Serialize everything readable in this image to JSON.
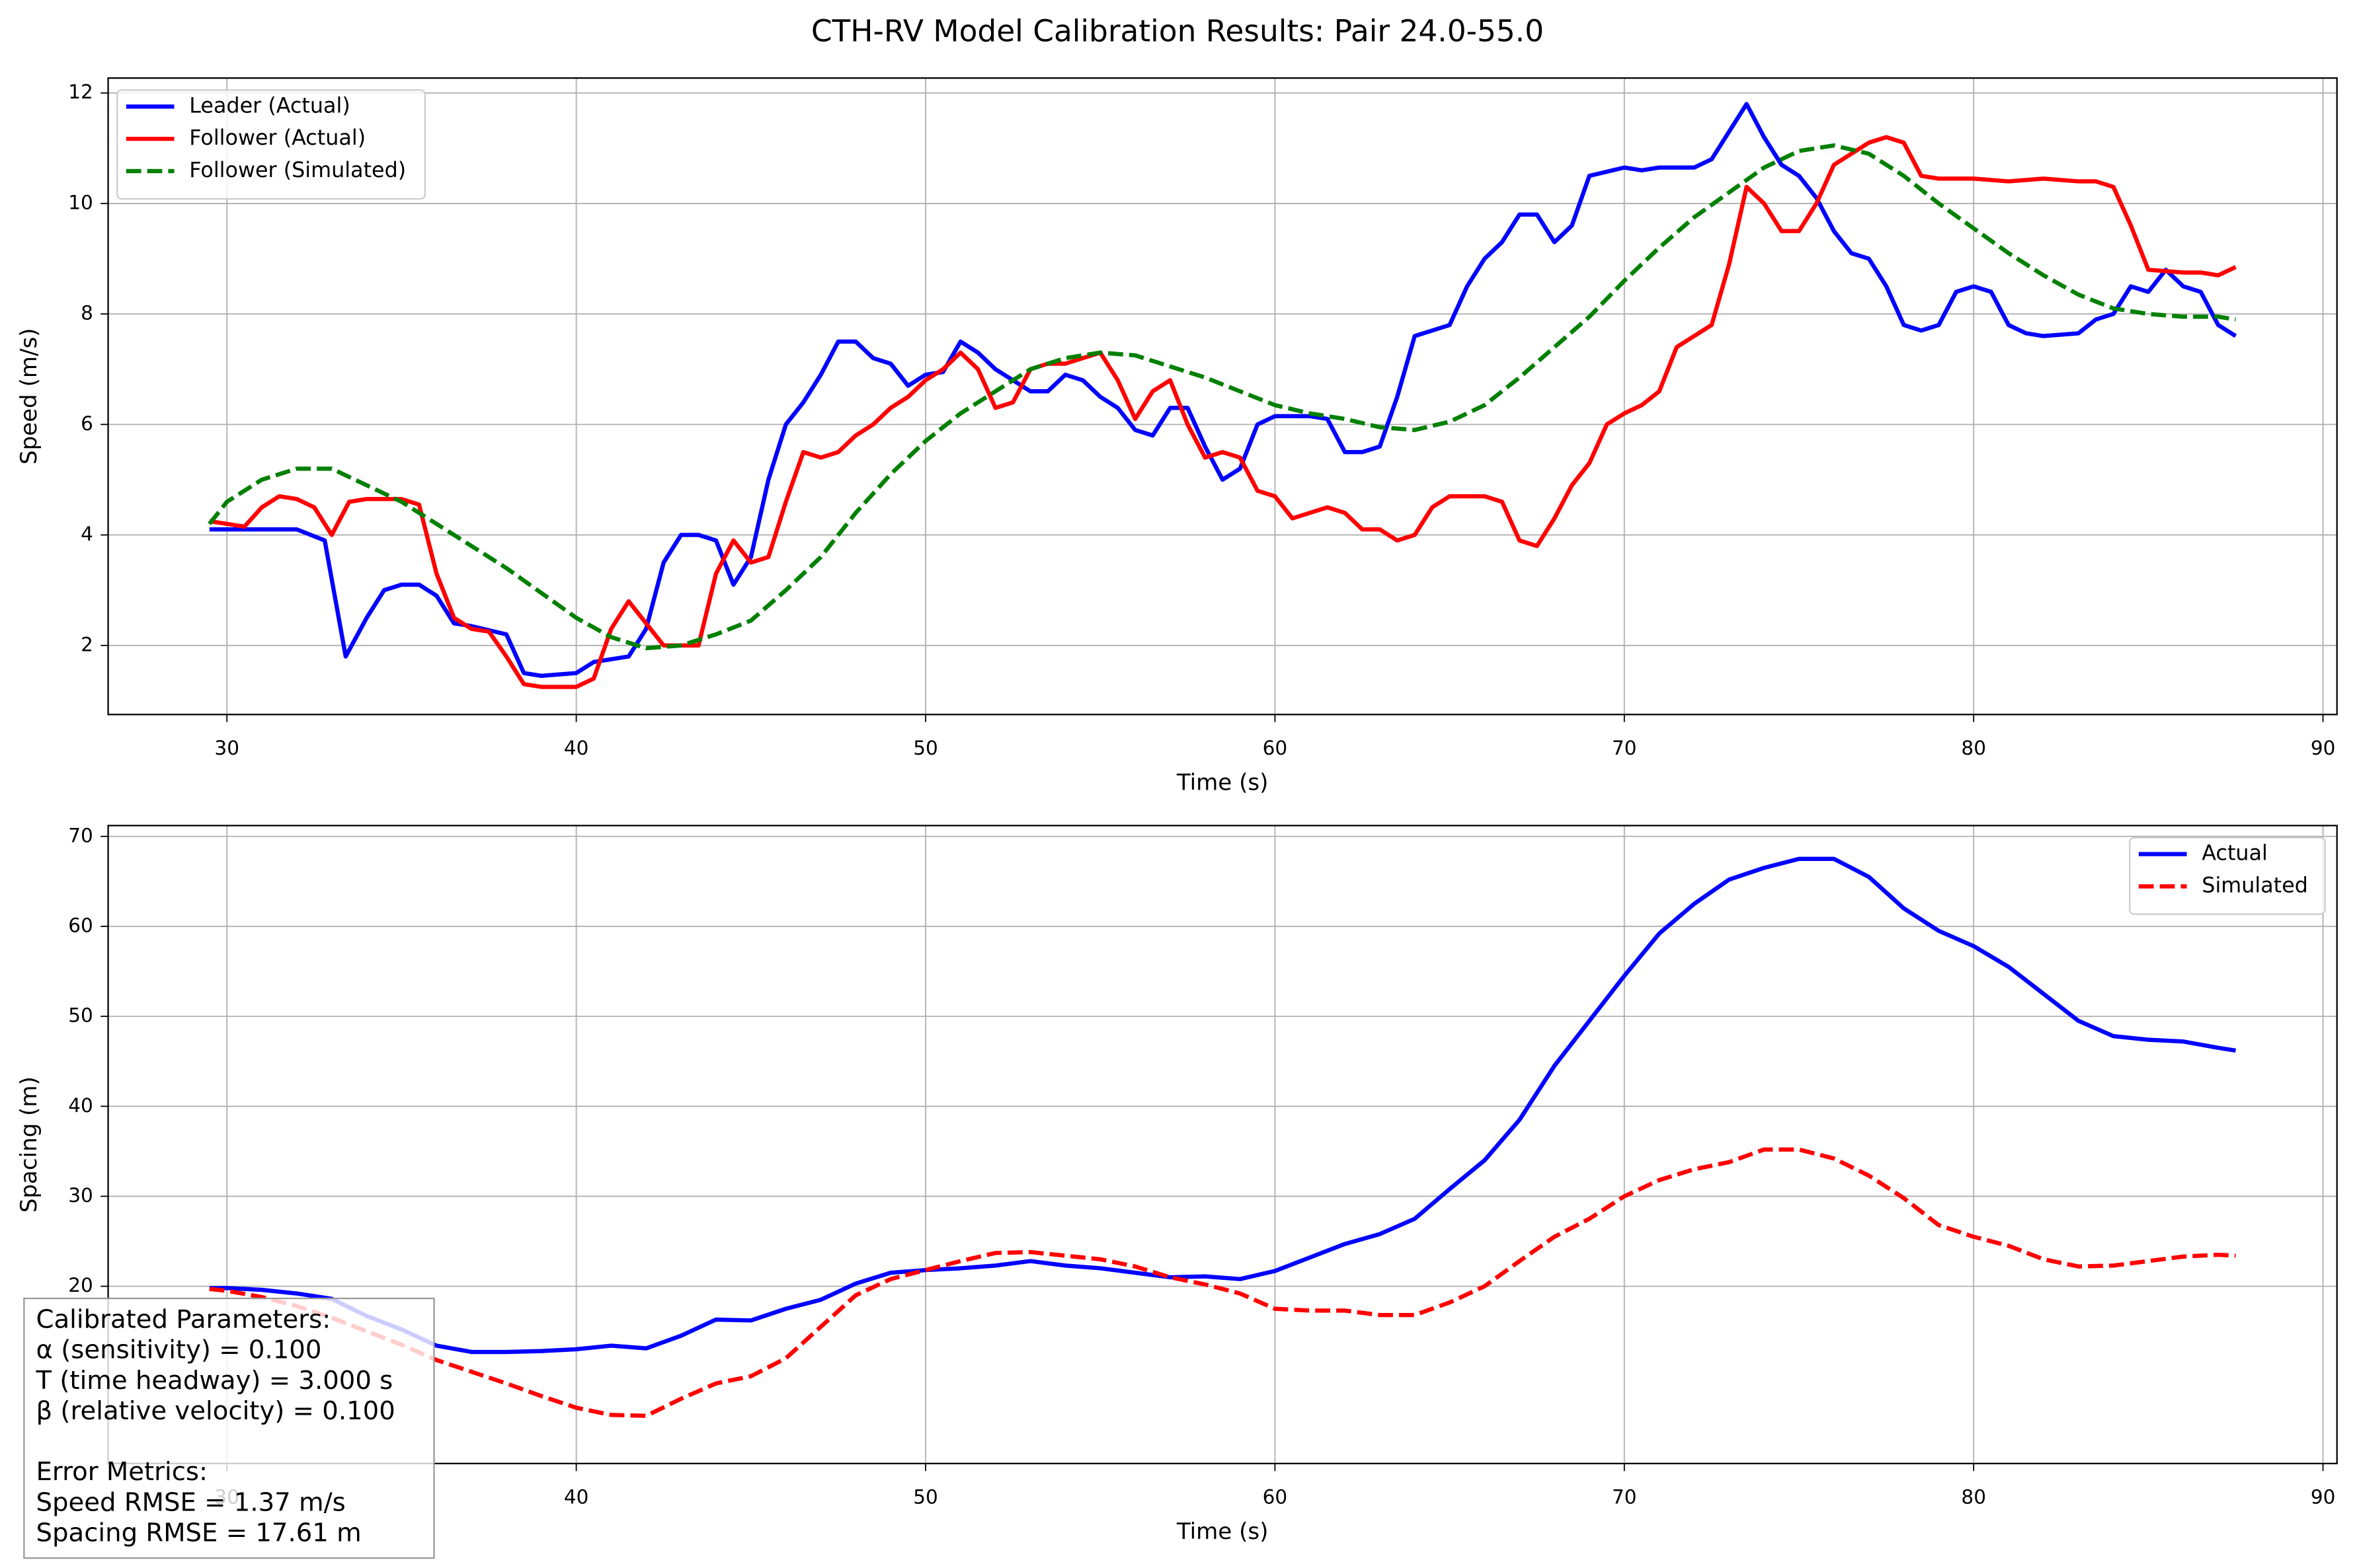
{
  "title": "CTH-RV Model Calibration Results: Pair 24.0-55.0",
  "chart_data": [
    {
      "type": "line",
      "xlabel": "Time (s)",
      "ylabel": "Speed (m/s)",
      "xlim": [
        26.6,
        90.4
      ],
      "ylim": [
        0.75,
        12.27
      ],
      "xticks": [
        30,
        40,
        50,
        60,
        70,
        80,
        90
      ],
      "yticks": [
        2,
        4,
        6,
        8,
        10,
        12
      ],
      "grid": true,
      "legend": "upper left",
      "series": [
        {
          "name": "Leader (Actual)",
          "color": "#0000ff",
          "linestyle": "solid",
          "x": [
            29.5,
            30,
            31,
            32,
            32.8,
            33.4,
            34,
            34.5,
            35,
            35.5,
            36,
            36.5,
            37,
            38,
            38.5,
            39,
            40,
            40.5,
            41.5,
            42,
            42.5,
            43,
            43.5,
            44,
            44.5,
            45,
            45.5,
            46,
            46.5,
            47,
            47.5,
            48,
            48.5,
            49,
            49.5,
            50,
            50.5,
            51,
            51.5,
            52,
            52.5,
            53,
            53.5,
            54,
            54.5,
            55,
            55.5,
            56,
            56.5,
            57,
            57.5,
            58,
            58.5,
            59,
            59.5,
            60,
            61,
            61.5,
            62,
            62.5,
            63,
            63.5,
            64,
            64.5,
            65,
            65.5,
            66,
            66.5,
            67,
            67.5,
            68,
            68.5,
            69,
            70,
            70.5,
            71,
            72,
            72.5,
            73,
            73.5,
            74,
            74.5,
            75,
            75.5,
            76,
            76.5,
            77,
            77.5,
            78,
            78.5,
            79,
            79.5,
            80,
            80.5,
            81,
            81.5,
            82,
            83,
            83.5,
            84,
            84.5,
            85,
            85.5,
            86,
            86.5,
            87,
            87.5
          ],
          "values": [
            4.1,
            4.1,
            4.1,
            4.1,
            3.9,
            1.8,
            2.5,
            3.0,
            3.1,
            3.1,
            2.9,
            2.4,
            2.35,
            2.2,
            1.5,
            1.45,
            1.5,
            1.7,
            1.8,
            2.3,
            3.5,
            4.0,
            4.0,
            3.9,
            3.1,
            3.6,
            5.0,
            6.0,
            6.4,
            6.9,
            7.5,
            7.5,
            7.2,
            7.1,
            6.7,
            6.9,
            6.95,
            7.5,
            7.3,
            7.0,
            6.8,
            6.6,
            6.6,
            6.9,
            6.8,
            6.5,
            6.3,
            5.9,
            5.8,
            6.3,
            6.3,
            5.6,
            5.0,
            5.2,
            6.0,
            6.15,
            6.15,
            6.1,
            5.5,
            5.5,
            5.6,
            6.5,
            7.6,
            7.7,
            7.8,
            8.5,
            9.0,
            9.3,
            9.8,
            9.8,
            9.3,
            9.6,
            10.5,
            10.65,
            10.6,
            10.65,
            10.65,
            10.8,
            11.3,
            11.8,
            11.2,
            10.7,
            10.5,
            10.1,
            9.5,
            9.1,
            9.0,
            8.5,
            7.8,
            7.7,
            7.8,
            8.4,
            8.5,
            8.4,
            7.8,
            7.65,
            7.6,
            7.65,
            7.9,
            8.0,
            8.5,
            8.4,
            8.8,
            8.5,
            8.4,
            7.8,
            7.6
          ]
        },
        {
          "name": "Follower (Actual)",
          "color": "#ff0000",
          "linestyle": "solid",
          "x": [
            29.5,
            30,
            30.5,
            31,
            31.5,
            32,
            32.5,
            33,
            33.5,
            34,
            35,
            35.5,
            36,
            36.5,
            37,
            37.5,
            38,
            38.5,
            39,
            40,
            40.5,
            41,
            41.5,
            42,
            42.5,
            43,
            43.5,
            44,
            44.5,
            45,
            45.5,
            46,
            46.5,
            47,
            47.5,
            48,
            48.5,
            49,
            49.5,
            50,
            50.5,
            51,
            51.5,
            52,
            52.5,
            53,
            53.5,
            54,
            54.5,
            55,
            55.5,
            56,
            56.5,
            57,
            57.5,
            58,
            58.5,
            59,
            59.5,
            60,
            60.5,
            61,
            61.5,
            62,
            62.5,
            63,
            63.5,
            64,
            64.5,
            65,
            66,
            66.5,
            67,
            67.5,
            68,
            68.5,
            69,
            69.5,
            70,
            70.5,
            71,
            71.5,
            72,
            72.5,
            73,
            73.5,
            74,
            74.5,
            75,
            75.5,
            76,
            76.5,
            77,
            77.5,
            78,
            78.5,
            79,
            80,
            81,
            82,
            83,
            83.5,
            84,
            84.5,
            85,
            86,
            86.5,
            87,
            87.5
          ],
          "values": [
            4.25,
            4.2,
            4.15,
            4.5,
            4.7,
            4.65,
            4.5,
            4.0,
            4.6,
            4.65,
            4.65,
            4.55,
            3.3,
            2.5,
            2.3,
            2.25,
            1.8,
            1.3,
            1.25,
            1.25,
            1.4,
            2.3,
            2.8,
            2.4,
            2.0,
            2.0,
            2.0,
            3.3,
            3.9,
            3.5,
            3.6,
            4.6,
            5.5,
            5.4,
            5.5,
            5.8,
            6.0,
            6.3,
            6.5,
            6.8,
            7.0,
            7.3,
            7.0,
            6.3,
            6.4,
            7.0,
            7.1,
            7.1,
            7.2,
            7.3,
            6.8,
            6.1,
            6.6,
            6.8,
            6.0,
            5.4,
            5.5,
            5.4,
            4.8,
            4.7,
            4.3,
            4.4,
            4.5,
            4.4,
            4.1,
            4.1,
            3.9,
            4.0,
            4.5,
            4.7,
            4.7,
            4.6,
            3.9,
            3.8,
            4.3,
            4.9,
            5.3,
            6.0,
            6.2,
            6.35,
            6.6,
            7.4,
            7.6,
            7.8,
            8.9,
            10.3,
            10.0,
            9.5,
            9.5,
            10.0,
            10.7,
            10.9,
            11.1,
            11.2,
            11.1,
            10.5,
            10.45,
            10.45,
            10.4,
            10.45,
            10.4,
            10.4,
            10.3,
            9.6,
            8.8,
            8.75,
            8.75,
            8.7,
            8.85
          ]
        },
        {
          "name": "Follower (Simulated)",
          "color": "#008000",
          "linestyle": "dashed",
          "x": [
            29.5,
            30,
            31,
            32,
            33,
            34,
            35,
            36,
            37,
            38,
            39,
            40,
            41,
            42,
            43,
            44,
            45,
            46,
            47,
            48,
            49,
            50,
            51,
            52,
            53,
            54,
            55,
            56,
            57,
            58,
            59,
            60,
            61,
            62,
            63,
            64,
            65,
            66,
            67,
            68,
            69,
            70,
            71,
            72,
            73,
            74,
            75,
            76,
            77,
            78,
            79,
            80,
            81,
            82,
            83,
            84,
            85,
            86,
            87,
            87.5
          ],
          "values": [
            4.2,
            4.6,
            5.0,
            5.2,
            5.2,
            4.9,
            4.6,
            4.2,
            3.8,
            3.4,
            2.95,
            2.5,
            2.15,
            1.95,
            2.0,
            2.2,
            2.45,
            3.0,
            3.6,
            4.4,
            5.1,
            5.7,
            6.2,
            6.6,
            7.0,
            7.2,
            7.3,
            7.25,
            7.05,
            6.85,
            6.6,
            6.35,
            6.2,
            6.1,
            5.95,
            5.9,
            6.05,
            6.35,
            6.85,
            7.4,
            7.95,
            8.6,
            9.2,
            9.75,
            10.2,
            10.65,
            10.95,
            11.05,
            10.9,
            10.5,
            10.0,
            9.55,
            9.1,
            8.7,
            8.35,
            8.1,
            8.0,
            7.95,
            7.95,
            7.9
          ]
        }
      ]
    },
    {
      "type": "line",
      "xlabel": "Time (s)",
      "ylabel": "Spacing (m)",
      "xlim": [
        26.6,
        90.4
      ],
      "ylim": [
        0.3,
        71.2
      ],
      "xticks": [
        30,
        40,
        50,
        60,
        70,
        80,
        90
      ],
      "yticks": [
        20,
        30,
        40,
        50,
        60,
        70
      ],
      "grid": true,
      "legend": "upper right",
      "series": [
        {
          "name": "Actual",
          "color": "#0000ff",
          "linestyle": "solid",
          "x": [
            29.5,
            30,
            31,
            32,
            33,
            34,
            35,
            36,
            37,
            38,
            39,
            40,
            41,
            42,
            43,
            44,
            45,
            46,
            47,
            48,
            49,
            50,
            51,
            52,
            53,
            54,
            55,
            56,
            57,
            58,
            59,
            60,
            61,
            62,
            63,
            64,
            65,
            66,
            67,
            68,
            69,
            70,
            71,
            72,
            73,
            74,
            75,
            76,
            77,
            78,
            79,
            80,
            81,
            82,
            83,
            84,
            85,
            86,
            87,
            87.5
          ],
          "values": [
            19.8,
            19.8,
            19.6,
            19.2,
            18.6,
            16.7,
            15.2,
            13.4,
            12.7,
            12.7,
            12.8,
            13.0,
            13.4,
            13.1,
            14.5,
            16.3,
            16.2,
            17.5,
            18.5,
            20.3,
            21.5,
            21.8,
            22.0,
            22.3,
            22.8,
            22.3,
            22.0,
            21.5,
            21.0,
            21.1,
            20.8,
            21.7,
            23.2,
            24.7,
            25.8,
            27.5,
            30.8,
            34.0,
            38.5,
            44.5,
            49.5,
            54.5,
            59.2,
            62.5,
            65.2,
            66.5,
            67.5,
            67.5,
            65.5,
            62.0,
            59.5,
            57.8,
            55.5,
            52.5,
            49.5,
            47.8,
            47.4,
            47.2,
            46.5,
            46.2
          ]
        },
        {
          "name": "Simulated",
          "color": "#ff0000",
          "linestyle": "dashed",
          "x": [
            29.5,
            30,
            31,
            32,
            33,
            34,
            35,
            36,
            37,
            38,
            39,
            40,
            41,
            42,
            43,
            44,
            45,
            46,
            47,
            48,
            49,
            50,
            51,
            52,
            53,
            54,
            55,
            56,
            57,
            58,
            59,
            60,
            61,
            62,
            63,
            64,
            65,
            66,
            67,
            68,
            69,
            70,
            71,
            72,
            73,
            74,
            75,
            76,
            77,
            78,
            79,
            80,
            81,
            82,
            83,
            84,
            85,
            86,
            87,
            87.5
          ],
          "values": [
            19.7,
            19.5,
            18.8,
            17.8,
            16.5,
            15.0,
            13.5,
            11.8,
            10.5,
            9.2,
            7.8,
            6.5,
            5.7,
            5.6,
            7.5,
            9.2,
            10.0,
            12.0,
            15.5,
            19.0,
            20.8,
            21.8,
            22.8,
            23.7,
            23.8,
            23.4,
            23.0,
            22.2,
            21.0,
            20.2,
            19.2,
            17.5,
            17.3,
            17.3,
            16.8,
            16.8,
            18.2,
            20.0,
            22.8,
            25.5,
            27.5,
            30.0,
            31.8,
            33.0,
            33.8,
            35.2,
            35.2,
            34.2,
            32.3,
            29.8,
            26.8,
            25.5,
            24.5,
            23.0,
            22.2,
            22.3,
            22.8,
            23.3,
            23.5,
            23.4
          ]
        }
      ]
    }
  ],
  "annotation": [
    {
      "lines": [
        "Calibrated Parameters:",
        "α (sensitivity) = 0.100",
        "T (time headway) = 3.000 s",
        "β (relative velocity) = 0.100"
      ]
    },
    {
      "lines": [
        "Error Metrics:",
        "Speed RMSE = 1.37 m/s",
        "Spacing RMSE = 17.61 m"
      ]
    }
  ]
}
